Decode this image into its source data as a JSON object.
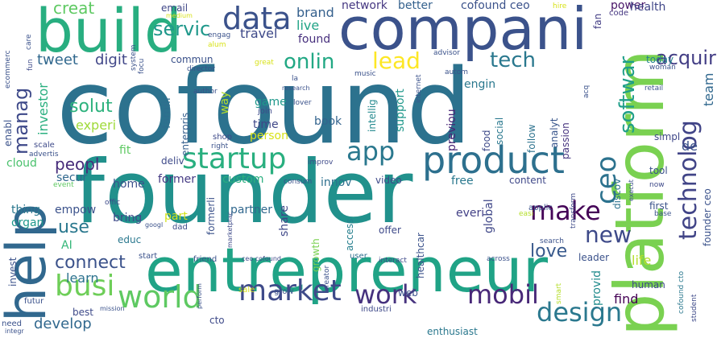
{
  "words": [
    {
      "text": "cofound",
      "color": "#2c728e"
    },
    {
      "text": "founder",
      "color": "#21918c"
    },
    {
      "text": "compani",
      "color": "#3b528b"
    },
    {
      "text": "entrepreneur",
      "color": "#20a386"
    },
    {
      "text": "build",
      "color": "#28ae80"
    },
    {
      "text": "platform",
      "color": "#7ad151"
    },
    {
      "text": "help",
      "color": "#31688e"
    },
    {
      "text": "product",
      "color": "#2d708e"
    },
    {
      "text": "market",
      "color": "#3e4a89"
    },
    {
      "text": "work",
      "color": "#46327e"
    },
    {
      "text": "mobil",
      "color": "#482878"
    },
    {
      "text": "world",
      "color": "#5ec962"
    },
    {
      "text": "data",
      "color": "#3b528b"
    },
    {
      "text": "startup",
      "color": "#29af7f"
    },
    {
      "text": "design",
      "color": "#2a788e"
    },
    {
      "text": "busi",
      "color": "#6ece58"
    },
    {
      "text": "make",
      "color": "#450457"
    },
    {
      "text": "app",
      "color": "#2a788e"
    },
    {
      "text": "new",
      "color": "#3e4a89"
    },
    {
      "text": "ceo",
      "color": "#2c728e"
    },
    {
      "text": "technolog",
      "color": "#414487"
    },
    {
      "text": "softwar",
      "color": "#1f9e89"
    },
    {
      "text": "lead",
      "color": "#fde725"
    },
    {
      "text": "tech",
      "color": "#2a788e"
    },
    {
      "text": "onlin",
      "color": "#22a884"
    },
    {
      "text": "acquir",
      "color": "#433e85"
    },
    {
      "text": "servic",
      "color": "#1f988b"
    },
    {
      "text": "manag",
      "color": "#3e4989"
    },
    {
      "text": "creat",
      "color": "#5ec962"
    },
    {
      "text": "solut",
      "color": "#2db27d"
    },
    {
      "text": "connect",
      "color": "#3b528b"
    },
    {
      "text": "love",
      "color": "#38598c"
    },
    {
      "text": "use",
      "color": "#2a788e"
    },
    {
      "text": "develop",
      "color": "#31688e"
    },
    {
      "text": "peopl",
      "color": "#472c7a"
    },
    {
      "text": "learn",
      "color": "#2c728e"
    },
    {
      "text": "digit",
      "color": "#404688"
    },
    {
      "text": "tweet",
      "color": "#31688e"
    },
    {
      "text": "travel",
      "color": "#3e4989"
    },
    {
      "text": "brand",
      "color": "#35608d"
    },
    {
      "text": "live",
      "color": "#20a386"
    },
    {
      "text": "found",
      "color": "#472f7d"
    },
    {
      "text": "network",
      "color": "#453781"
    },
    {
      "text": "better",
      "color": "#34618d"
    },
    {
      "text": "cofound ceo",
      "color": "#3b528b"
    },
    {
      "text": "power",
      "color": "#481467"
    },
    {
      "text": "health",
      "color": "#404688"
    },
    {
      "text": "team",
      "color": "#31688e"
    },
    {
      "text": "today",
      "color": "#25848e"
    },
    {
      "text": "life",
      "color": "#b5de2b"
    },
    {
      "text": "find",
      "color": "#440154"
    },
    {
      "text": "provid",
      "color": "#228c8d"
    },
    {
      "text": "human",
      "color": "#3e4a89"
    },
    {
      "text": "founder ceo",
      "color": "#3b528b"
    },
    {
      "text": "tool",
      "color": "#3b528b"
    },
    {
      "text": "simpl",
      "color": "#3f4788"
    },
    {
      "text": "email",
      "color": "#3f4788"
    },
    {
      "text": "fan",
      "color": "#433e85"
    },
    {
      "text": "code",
      "color": "#453781"
    },
    {
      "text": "engin",
      "color": "#2a788e"
    },
    {
      "text": "commun",
      "color": "#3b528b"
    },
    {
      "text": "experi",
      "color": "#9fda3a"
    },
    {
      "text": "investor",
      "color": "#29af7f"
    },
    {
      "text": "enabl",
      "color": "#3b528b"
    },
    {
      "text": "game",
      "color": "#1f988b"
    },
    {
      "text": "join",
      "color": "#3e4a89"
    },
    {
      "text": "time",
      "color": "#3f4788"
    },
    {
      "text": "person",
      "color": "#d8e219"
    },
    {
      "text": "book",
      "color": "#33638d"
    },
    {
      "text": "enterpris",
      "color": "#355f8d"
    },
    {
      "text": "famili",
      "color": "#2e6e8e"
    },
    {
      "text": "way",
      "color": "#b5de2b"
    },
    {
      "text": "intellig",
      "color": "#23898e"
    },
    {
      "text": "support",
      "color": "#1f988b"
    },
    {
      "text": "previou",
      "color": "#482576"
    },
    {
      "text": "food",
      "color": "#3e4a89"
    },
    {
      "text": "social",
      "color": "#2a788e"
    },
    {
      "text": "follow",
      "color": "#2c728e"
    },
    {
      "text": "analyt",
      "color": "#39568c"
    },
    {
      "text": "passion",
      "color": "#46337f"
    },
    {
      "text": "content",
      "color": "#3f4889"
    },
    {
      "text": "discov",
      "color": "#2c728e"
    },
    {
      "text": "leader",
      "color": "#3b528b"
    },
    {
      "text": "custom",
      "color": "#29af7f"
    },
    {
      "text": "former",
      "color": "#443983"
    },
    {
      "text": "deliv",
      "color": "#3e4a89"
    },
    {
      "text": "home",
      "color": "#3b528b"
    },
    {
      "text": "bring",
      "color": "#3e4a89"
    },
    {
      "text": "educ",
      "color": "#2a788e"
    },
    {
      "text": "empow",
      "color": "#3b528b"
    },
    {
      "text": "thing",
      "color": "#2a788e"
    },
    {
      "text": "organ",
      "color": "#1f988b"
    },
    {
      "text": "AI",
      "color": "#35b779"
    },
    {
      "text": "invest",
      "color": "#3b528b"
    },
    {
      "text": "best",
      "color": "#3e4a89"
    },
    {
      "text": "secur",
      "color": "#31688e"
    },
    {
      "text": "cloud",
      "color": "#4ac16d"
    },
    {
      "text": "fit",
      "color": "#5ec962"
    },
    {
      "text": "innov",
      "color": "#2d708e"
    },
    {
      "text": "video",
      "color": "#3e4a89"
    },
    {
      "text": "free",
      "color": "#2a788e"
    },
    {
      "text": "global",
      "color": "#3f4788"
    },
    {
      "text": "everi",
      "color": "#424086"
    },
    {
      "text": "partner",
      "color": "#31688e"
    },
    {
      "text": "formerli",
      "color": "#3b528b"
    },
    {
      "text": "share",
      "color": "#3f4788"
    },
    {
      "text": "growth",
      "color": "#7ad151"
    },
    {
      "text": "access",
      "color": "#277f8e"
    },
    {
      "text": "healthcar",
      "color": "#3b528b"
    },
    {
      "text": "offer",
      "color": "#3e4989"
    },
    {
      "text": "web",
      "color": "#3b528b"
    },
    {
      "text": "industri",
      "color": "#3e4989"
    },
    {
      "text": "enthusiast",
      "color": "#2a788e"
    },
    {
      "text": "user",
      "color": "#2e6e8e"
    },
    {
      "text": "interact",
      "color": "#3e4989"
    },
    {
      "text": "search",
      "color": "#3b528b"
    },
    {
      "text": "across",
      "color": "#3b528b"
    },
    {
      "text": "part",
      "color": "#d2e21b"
    },
    {
      "text": "dad",
      "color": "#3e4a89"
    },
    {
      "text": "googl",
      "color": "#3b528b"
    },
    {
      "text": "offic",
      "color": "#3e4a89"
    },
    {
      "text": "start",
      "color": "#3b528b"
    },
    {
      "text": "friend",
      "color": "#3b528b"
    },
    {
      "text": "ceo cofound",
      "color": "#3e4a89"
    },
    {
      "text": "sale",
      "color": "#d8e219"
    },
    {
      "text": "grow",
      "color": "#3b528b"
    },
    {
      "text": "cto",
      "color": "#3e4a89"
    },
    {
      "text": "perform",
      "color": "#3b528b"
    },
    {
      "text": "mission",
      "color": "#3b528b"
    },
    {
      "text": "futur",
      "color": "#3b528b"
    },
    {
      "text": "need",
      "color": "#3b528b"
    },
    {
      "text": "integr",
      "color": "#3b528b"
    },
    {
      "text": "student",
      "color": "#3e4a89"
    },
    {
      "text": "smart",
      "color": "#b5de2b"
    },
    {
      "text": "cofound cto",
      "color": "#2a788e"
    },
    {
      "text": "first",
      "color": "#3b528b"
    },
    {
      "text": "base",
      "color": "#3b528b"
    },
    {
      "text": "now",
      "color": "#3e4a89"
    },
    {
      "text": "execut",
      "color": "#3b528b"
    },
    {
      "text": "applic",
      "color": "#3b528b"
    },
    {
      "text": "transform",
      "color": "#3e4a89"
    },
    {
      "text": "easi",
      "color": "#b5de2b"
    },
    {
      "text": "creator",
      "color": "#3b528b"
    },
    {
      "text": "marketplac",
      "color": "#3e4a89"
    },
    {
      "text": "consum",
      "color": "#3b528b"
    },
    {
      "text": "improv",
      "color": "#3e4a89"
    },
    {
      "text": "right",
      "color": "#3b528b"
    },
    {
      "text": "shop",
      "color": "#3e4a89"
    },
    {
      "text": "advertis",
      "color": "#3b528b"
    },
    {
      "text": "scale",
      "color": "#3e4a89"
    },
    {
      "text": "event",
      "color": "#5ec962"
    },
    {
      "text": "focu",
      "color": "#3b528b"
    },
    {
      "text": "system",
      "color": "#3b528b"
    },
    {
      "text": "fun",
      "color": "#3e4a89"
    },
    {
      "text": "ecommerc",
      "color": "#3b528b"
    },
    {
      "text": "care",
      "color": "#3b528b"
    },
    {
      "text": "medium",
      "color": "#d8e219"
    },
    {
      "text": "engag",
      "color": "#3b528b"
    },
    {
      "text": "alum",
      "color": "#d8e219"
    },
    {
      "text": "director",
      "color": "#3b528b"
    },
    {
      "text": "great",
      "color": "#d8e219"
    },
    {
      "text": "research",
      "color": "#3b528b"
    },
    {
      "text": "lover",
      "color": "#3b528b"
    },
    {
      "text": "la",
      "color": "#3b528b"
    },
    {
      "text": "author",
      "color": "#3b528b"
    },
    {
      "text": "music",
      "color": "#3b528b"
    },
    {
      "text": "internet",
      "color": "#3b528b"
    },
    {
      "text": "autom",
      "color": "#3b528b"
    },
    {
      "text": "advisor",
      "color": "#3b528b"
    },
    {
      "text": "acq",
      "color": "#3b528b"
    },
    {
      "text": "woman",
      "color": "#3b528b"
    },
    {
      "text": "retail",
      "color": "#3b528b"
    },
    {
      "text": "hire",
      "color": "#d8e219"
    },
    {
      "text": "de",
      "color": "#3b528b"
    }
  ]
}
